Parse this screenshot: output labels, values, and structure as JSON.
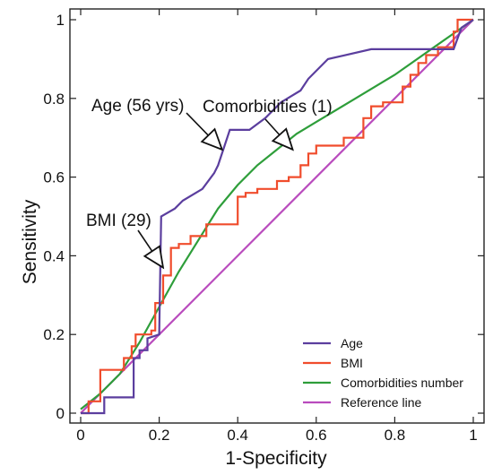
{
  "chart_data": {
    "type": "line",
    "title": "",
    "xlabel": "1-Specificity",
    "ylabel": "Sensitivity",
    "xlim": [
      0,
      1
    ],
    "ylim": [
      0,
      1
    ],
    "xticks": [
      "0",
      "0.2",
      "0.4",
      "0.6",
      "0.8",
      "1"
    ],
    "yticks": [
      "0",
      "0.2",
      "0.4",
      "0.6",
      "0.8",
      "1"
    ],
    "grid": false,
    "legend_position": "bottom-right",
    "series": [
      {
        "name": "Age",
        "color": "#5b3e9e",
        "x": [
          0,
          0.06,
          0.06,
          0.135,
          0.135,
          0.15,
          0.15,
          0.17,
          0.17,
          0.2,
          0.205,
          0.205,
          0.24,
          0.24,
          0.26,
          0.26,
          0.31,
          0.31,
          0.34,
          0.34,
          0.35,
          0.35,
          0.38,
          0.38,
          0.4,
          0.4,
          0.43,
          0.43,
          0.47,
          0.47,
          0.51,
          0.51,
          0.56,
          0.56,
          0.58,
          0.58,
          0.63,
          0.63,
          0.74,
          0.74,
          0.95,
          0.95,
          0.97,
          0.97,
          1
        ],
        "y": [
          0,
          0,
          0.04,
          0.04,
          0.14,
          0.14,
          0.16,
          0.16,
          0.19,
          0.2,
          0.5,
          0.5,
          0.52,
          0.52,
          0.54,
          0.54,
          0.57,
          0.57,
          0.61,
          0.61,
          0.63,
          0.63,
          0.72,
          0.72,
          0.72,
          0.72,
          0.72,
          0.72,
          0.75,
          0.75,
          0.79,
          0.79,
          0.82,
          0.82,
          0.85,
          0.85,
          0.9,
          0.9,
          0.925,
          0.925,
          0.925,
          0.925,
          0.98,
          0.98,
          1
        ]
      },
      {
        "name": "BMI",
        "color": "#f04c2c",
        "x": [
          0,
          0.02,
          0.02,
          0.05,
          0.05,
          0.08,
          0.08,
          0.11,
          0.11,
          0.13,
          0.13,
          0.14,
          0.14,
          0.18,
          0.18,
          0.19,
          0.19,
          0.21,
          0.21,
          0.23,
          0.23,
          0.25,
          0.25,
          0.28,
          0.28,
          0.32,
          0.32,
          0.4,
          0.4,
          0.42,
          0.42,
          0.45,
          0.45,
          0.5,
          0.5,
          0.53,
          0.53,
          0.56,
          0.56,
          0.58,
          0.58,
          0.6,
          0.6,
          0.67,
          0.67,
          0.72,
          0.72,
          0.74,
          0.74,
          0.77,
          0.77,
          0.82,
          0.82,
          0.84,
          0.84,
          0.86,
          0.86,
          0.88,
          0.88,
          0.91,
          0.91,
          0.93,
          0.93,
          0.95,
          0.95,
          0.96,
          0.96,
          0.98,
          0.98,
          1
        ],
        "y": [
          0,
          0,
          0.03,
          0.03,
          0.11,
          0.11,
          0.11,
          0.11,
          0.14,
          0.14,
          0.17,
          0.17,
          0.2,
          0.2,
          0.21,
          0.21,
          0.28,
          0.28,
          0.35,
          0.35,
          0.42,
          0.42,
          0.43,
          0.43,
          0.45,
          0.45,
          0.48,
          0.48,
          0.55,
          0.55,
          0.56,
          0.56,
          0.57,
          0.57,
          0.59,
          0.59,
          0.6,
          0.6,
          0.63,
          0.63,
          0.66,
          0.66,
          0.68,
          0.68,
          0.7,
          0.7,
          0.75,
          0.75,
          0.78,
          0.78,
          0.79,
          0.79,
          0.83,
          0.83,
          0.86,
          0.86,
          0.89,
          0.89,
          0.91,
          0.91,
          0.93,
          0.93,
          0.93,
          0.93,
          0.97,
          0.97,
          1,
          1,
          1,
          1
        ]
      },
      {
        "name": "Comorbidities number",
        "color": "#2e9e3a",
        "x": [
          0,
          0.05,
          0.1,
          0.15,
          0.2,
          0.25,
          0.3,
          0.35,
          0.4,
          0.45,
          0.5,
          0.55,
          0.6,
          0.7,
          0.8,
          0.9,
          1
        ],
        "y": [
          0.01,
          0.05,
          0.1,
          0.18,
          0.27,
          0.36,
          0.44,
          0.52,
          0.58,
          0.63,
          0.67,
          0.71,
          0.74,
          0.8,
          0.86,
          0.93,
          1
        ]
      },
      {
        "name": "Reference line",
        "color": "#b94bbd",
        "x": [
          0,
          1
        ],
        "y": [
          0,
          1
        ]
      }
    ],
    "annotations": [
      {
        "text": "Age (56 yrs)",
        "pointer": [
          0.36,
          0.67
        ]
      },
      {
        "text": "Comorbidities (1)",
        "pointer": [
          0.54,
          0.67
        ]
      },
      {
        "text": "BMI (29)",
        "pointer": [
          0.21,
          0.37
        ]
      }
    ]
  }
}
